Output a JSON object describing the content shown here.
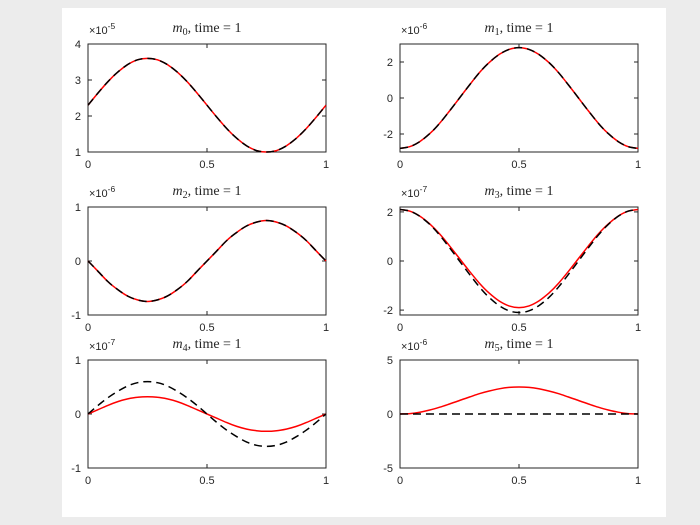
{
  "figure": {
    "background": "#ffffff",
    "canvas_background": "#ececec",
    "axis_color": "#262626",
    "series_colors": {
      "solid": "#ff0000",
      "dashed": "#000000"
    }
  },
  "chart_data": [
    {
      "type": "line",
      "id": "m0",
      "title": {
        "var": "m",
        "sub": "0",
        "rest": ", time = 1"
      },
      "y_scale_label": {
        "base": "×10",
        "exp": "-5"
      },
      "xlim": [
        0,
        1
      ],
      "ylim": [
        1,
        4
      ],
      "xticks": [
        0,
        0.5,
        1
      ],
      "xtick_labels": [
        "0",
        "0.5",
        "1"
      ],
      "yticks": [
        1,
        2,
        3,
        4
      ],
      "ytick_labels": [
        "1",
        "2",
        "3",
        "4"
      ],
      "x": [
        0,
        0.042,
        0.083,
        0.125,
        0.167,
        0.208,
        0.25,
        0.292,
        0.333,
        0.375,
        0.417,
        0.458,
        0.5,
        0.542,
        0.583,
        0.625,
        0.667,
        0.708,
        0.75,
        0.792,
        0.833,
        0.875,
        0.917,
        0.958,
        1
      ],
      "series": [
        {
          "name": "red-solid",
          "color": "#ff0000",
          "style": "solid",
          "values": [
            2.3,
            2.64,
            2.95,
            3.22,
            3.43,
            3.56,
            3.6,
            3.56,
            3.43,
            3.22,
            2.95,
            2.64,
            2.3,
            1.96,
            1.65,
            1.38,
            1.17,
            1.04,
            1.0,
            1.04,
            1.17,
            1.38,
            1.65,
            1.96,
            2.3
          ]
        },
        {
          "name": "black-dashed",
          "color": "#000000",
          "style": "dashed",
          "values": [
            2.3,
            2.64,
            2.95,
            3.22,
            3.43,
            3.56,
            3.6,
            3.56,
            3.43,
            3.22,
            2.95,
            2.64,
            2.3,
            1.96,
            1.65,
            1.38,
            1.17,
            1.04,
            1.0,
            1.04,
            1.17,
            1.38,
            1.65,
            1.96,
            2.3
          ]
        }
      ]
    },
    {
      "type": "line",
      "id": "m1",
      "title": {
        "var": "m",
        "sub": "1",
        "rest": ", time = 1"
      },
      "y_scale_label": {
        "base": "×10",
        "exp": "-6"
      },
      "xlim": [
        0,
        1
      ],
      "ylim": [
        -3,
        3
      ],
      "xticks": [
        0,
        0.5,
        1
      ],
      "xtick_labels": [
        "0",
        "0.5",
        "1"
      ],
      "yticks": [
        -2,
        0,
        2
      ],
      "ytick_labels": [
        "-2",
        "0",
        "2"
      ],
      "x": [
        0,
        0.042,
        0.083,
        0.125,
        0.167,
        0.208,
        0.25,
        0.292,
        0.333,
        0.375,
        0.417,
        0.458,
        0.5,
        0.542,
        0.583,
        0.625,
        0.667,
        0.708,
        0.75,
        0.792,
        0.833,
        0.875,
        0.917,
        0.958,
        1
      ],
      "series": [
        {
          "name": "red-solid",
          "color": "#ff0000",
          "style": "solid",
          "values": [
            -2.8,
            -2.7,
            -2.42,
            -1.98,
            -1.4,
            -0.72,
            0,
            0.72,
            1.4,
            1.98,
            2.42,
            2.7,
            2.8,
            2.7,
            2.42,
            1.98,
            1.4,
            0.72,
            0,
            -0.72,
            -1.4,
            -1.98,
            -2.42,
            -2.7,
            -2.8
          ]
        },
        {
          "name": "black-dashed",
          "color": "#000000",
          "style": "dashed",
          "values": [
            -2.8,
            -2.7,
            -2.42,
            -1.98,
            -1.4,
            -0.72,
            0,
            0.72,
            1.4,
            1.98,
            2.42,
            2.7,
            2.8,
            2.7,
            2.42,
            1.98,
            1.4,
            0.72,
            0,
            -0.72,
            -1.4,
            -1.98,
            -2.42,
            -2.7,
            -2.8
          ]
        }
      ]
    },
    {
      "type": "line",
      "id": "m2",
      "title": {
        "var": "m",
        "sub": "2",
        "rest": ", time = 1"
      },
      "y_scale_label": {
        "base": "×10",
        "exp": "-6"
      },
      "xlim": [
        0,
        1
      ],
      "ylim": [
        -1,
        1
      ],
      "xticks": [
        0,
        0.5,
        1
      ],
      "xtick_labels": [
        "0",
        "0.5",
        "1"
      ],
      "yticks": [
        -1,
        0,
        1
      ],
      "ytick_labels": [
        "-1",
        "0",
        "1"
      ],
      "x": [
        0,
        0.042,
        0.083,
        0.125,
        0.167,
        0.208,
        0.25,
        0.292,
        0.333,
        0.375,
        0.417,
        0.458,
        0.5,
        0.542,
        0.583,
        0.625,
        0.667,
        0.708,
        0.75,
        0.792,
        0.833,
        0.875,
        0.917,
        0.958,
        1
      ],
      "series": [
        {
          "name": "red-solid",
          "color": "#ff0000",
          "style": "solid",
          "values": [
            0,
            -0.19,
            -0.38,
            -0.53,
            -0.65,
            -0.72,
            -0.75,
            -0.72,
            -0.65,
            -0.53,
            -0.38,
            -0.19,
            0,
            0.19,
            0.38,
            0.53,
            0.65,
            0.72,
            0.75,
            0.72,
            0.65,
            0.53,
            0.38,
            0.19,
            0
          ]
        },
        {
          "name": "black-dashed",
          "color": "#000000",
          "style": "dashed",
          "values": [
            0,
            -0.19,
            -0.38,
            -0.53,
            -0.65,
            -0.72,
            -0.75,
            -0.72,
            -0.65,
            -0.53,
            -0.38,
            -0.19,
            0,
            0.19,
            0.38,
            0.53,
            0.65,
            0.72,
            0.75,
            0.72,
            0.65,
            0.53,
            0.38,
            0.19,
            0
          ]
        }
      ]
    },
    {
      "type": "line",
      "id": "m3",
      "title": {
        "var": "m",
        "sub": "3",
        "rest": ", time = 1"
      },
      "y_scale_label": {
        "base": "×10",
        "exp": "-7"
      },
      "xlim": [
        0,
        1
      ],
      "ylim": [
        -2.2,
        2.2
      ],
      "xticks": [
        0,
        0.5,
        1
      ],
      "xtick_labels": [
        "0",
        "0.5",
        "1"
      ],
      "yticks": [
        -2,
        0,
        2
      ],
      "ytick_labels": [
        "-2",
        "0",
        "2"
      ],
      "x": [
        0,
        0.042,
        0.083,
        0.125,
        0.167,
        0.208,
        0.25,
        0.292,
        0.333,
        0.375,
        0.417,
        0.458,
        0.5,
        0.542,
        0.583,
        0.625,
        0.667,
        0.708,
        0.75,
        0.792,
        0.833,
        0.875,
        0.917,
        0.958,
        1
      ],
      "series": [
        {
          "name": "red-solid",
          "color": "#ff0000",
          "style": "solid",
          "values": [
            2.1,
            2.03,
            1.83,
            1.51,
            1.1,
            0.62,
            0.1,
            -0.42,
            -0.9,
            -1.31,
            -1.63,
            -1.83,
            -1.9,
            -1.83,
            -1.63,
            -1.31,
            -0.9,
            -0.42,
            0.1,
            0.62,
            1.1,
            1.51,
            1.83,
            2.03,
            2.1
          ]
        },
        {
          "name": "black-dashed",
          "color": "#000000",
          "style": "dashed",
          "values": [
            2.1,
            2.03,
            1.82,
            1.49,
            1.05,
            0.54,
            0,
            -0.54,
            -1.05,
            -1.49,
            -1.82,
            -2.03,
            -2.1,
            -2.03,
            -1.82,
            -1.49,
            -1.05,
            -0.54,
            0,
            0.54,
            1.05,
            1.49,
            1.82,
            2.03,
            2.1
          ]
        }
      ]
    },
    {
      "type": "line",
      "id": "m4",
      "title": {
        "var": "m",
        "sub": "4",
        "rest": ", time = 1"
      },
      "y_scale_label": {
        "base": "×10",
        "exp": "-7"
      },
      "xlim": [
        0,
        1
      ],
      "ylim": [
        -1,
        1
      ],
      "xticks": [
        0,
        0.5,
        1
      ],
      "xtick_labels": [
        "0",
        "0.5",
        "1"
      ],
      "yticks": [
        -1,
        0,
        1
      ],
      "ytick_labels": [
        "-1",
        "0",
        "1"
      ],
      "x": [
        0,
        0.042,
        0.083,
        0.125,
        0.167,
        0.208,
        0.25,
        0.292,
        0.333,
        0.375,
        0.417,
        0.458,
        0.5,
        0.542,
        0.583,
        0.625,
        0.667,
        0.708,
        0.75,
        0.792,
        0.833,
        0.875,
        0.917,
        0.958,
        1
      ],
      "series": [
        {
          "name": "red-solid",
          "color": "#ff0000",
          "style": "solid",
          "values": [
            0,
            0.08,
            0.16,
            0.23,
            0.28,
            0.31,
            0.32,
            0.31,
            0.28,
            0.23,
            0.16,
            0.08,
            0,
            -0.08,
            -0.16,
            -0.23,
            -0.28,
            -0.31,
            -0.32,
            -0.31,
            -0.28,
            -0.23,
            -0.16,
            -0.08,
            0
          ]
        },
        {
          "name": "black-dashed",
          "color": "#000000",
          "style": "dashed",
          "values": [
            0,
            0.16,
            0.3,
            0.42,
            0.52,
            0.58,
            0.6,
            0.58,
            0.52,
            0.42,
            0.3,
            0.16,
            0,
            -0.16,
            -0.3,
            -0.42,
            -0.52,
            -0.58,
            -0.6,
            -0.58,
            -0.52,
            -0.42,
            -0.3,
            -0.16,
            0
          ]
        }
      ]
    },
    {
      "type": "line",
      "id": "m5",
      "title": {
        "var": "m",
        "sub": "5",
        "rest": ", time = 1"
      },
      "y_scale_label": {
        "base": "×10",
        "exp": "-6"
      },
      "xlim": [
        0,
        1
      ],
      "ylim": [
        -5,
        5
      ],
      "xticks": [
        0,
        0.5,
        1
      ],
      "xtick_labels": [
        "0",
        "0.5",
        "1"
      ],
      "yticks": [
        -5,
        0,
        5
      ],
      "ytick_labels": [
        "-5",
        "0",
        "5"
      ],
      "x": [
        0,
        0.042,
        0.083,
        0.125,
        0.167,
        0.208,
        0.25,
        0.292,
        0.333,
        0.375,
        0.417,
        0.458,
        0.5,
        0.542,
        0.583,
        0.625,
        0.667,
        0.708,
        0.75,
        0.792,
        0.833,
        0.875,
        0.917,
        0.958,
        1
      ],
      "series": [
        {
          "name": "red-solid",
          "color": "#ff0000",
          "style": "solid",
          "values": [
            0,
            0.04,
            0.17,
            0.37,
            0.63,
            0.93,
            1.25,
            1.57,
            1.88,
            2.13,
            2.33,
            2.46,
            2.5,
            2.46,
            2.33,
            2.13,
            1.88,
            1.57,
            1.25,
            0.93,
            0.63,
            0.37,
            0.17,
            0.04,
            0
          ]
        },
        {
          "name": "black-dashed",
          "color": "#000000",
          "style": "dashed",
          "values": [
            0,
            0,
            0,
            0,
            0,
            0,
            0,
            0,
            0,
            0,
            0,
            0,
            0,
            0,
            0,
            0,
            0,
            0,
            0,
            0,
            0,
            0,
            0,
            0,
            0
          ]
        }
      ]
    }
  ]
}
